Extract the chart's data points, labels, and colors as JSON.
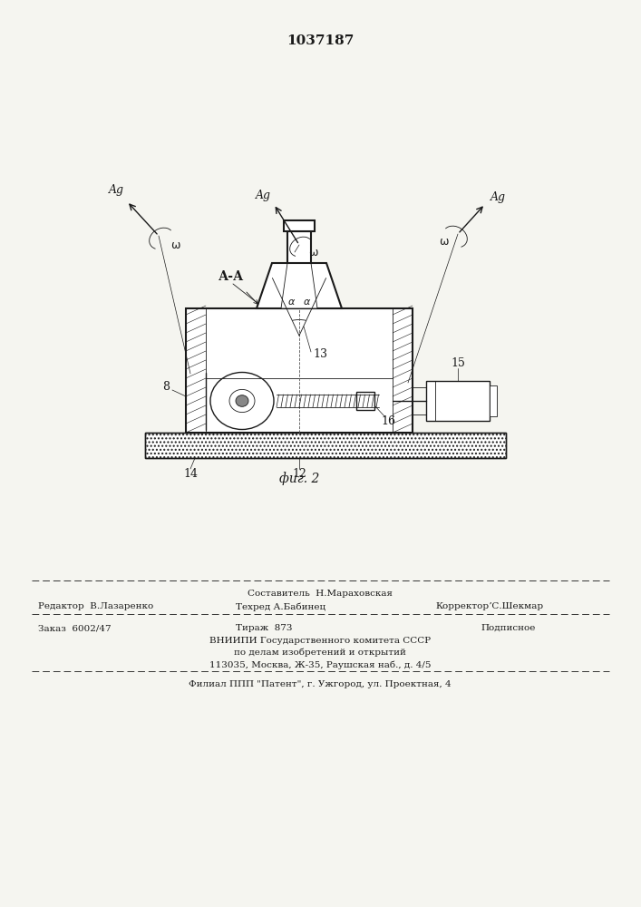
{
  "title_number": "1037187",
  "fig_caption": "фиг. 2",
  "bg_color": "#f5f5f0",
  "line_color": "#1a1a1a",
  "footer_line1": "Составитель  Н.Мараховская",
  "footer_line2_left": "Редактор  В.Лазаренко",
  "footer_line2_mid": "Техред А.Бабинец",
  "footer_line2_right": "КорректорʼС.Шекмар",
  "footer_line3_left": "Заказ  6002/47",
  "footer_line3_mid": "Тираж  873",
  "footer_line3_right": "Подписное",
  "footer_line4": "ВНИИПИ Государственного комитета СССР",
  "footer_line5": "по делам изобретений и открытий",
  "footer_line6": "113035, Москва, Ж-35, Раушская наб., д. 4/5",
  "footer_line7": "Филиал ППП \"Патент\", г. Ужгород, ул. Проектная, 4"
}
